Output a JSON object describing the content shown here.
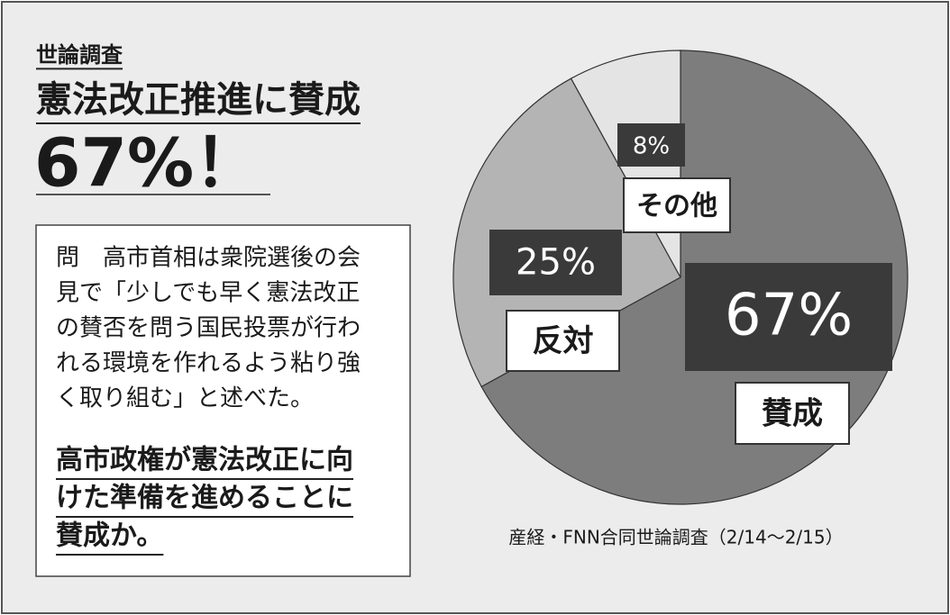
{
  "kicker": "世論調査",
  "headline": "憲法改正推進に賛成",
  "headline_figure": "67%！",
  "question": {
    "lines": [
      "問　高市首相は衆院選後の会",
      "見で「少しでも早く憲法改正",
      "の賛否を問う国民投票が行わ",
      "れる環境を作れるよう粘り強",
      "く取り組む」と述べた。"
    ],
    "emphasis": [
      "高市政権が憲法改正に向",
      "けた準備を進めることに",
      "賛成か。"
    ]
  },
  "chart_data": {
    "type": "pie",
    "categories": [
      "賛成",
      "反対",
      "その他"
    ],
    "values": [
      67,
      25,
      8
    ],
    "value_labels": [
      "67%",
      "25%",
      "8%"
    ],
    "colors": [
      "#7d7d7d",
      "#b4b4b4",
      "#e4e4e4"
    ],
    "source": "産経・FNN合同世論調査（2/14～2/15）"
  }
}
